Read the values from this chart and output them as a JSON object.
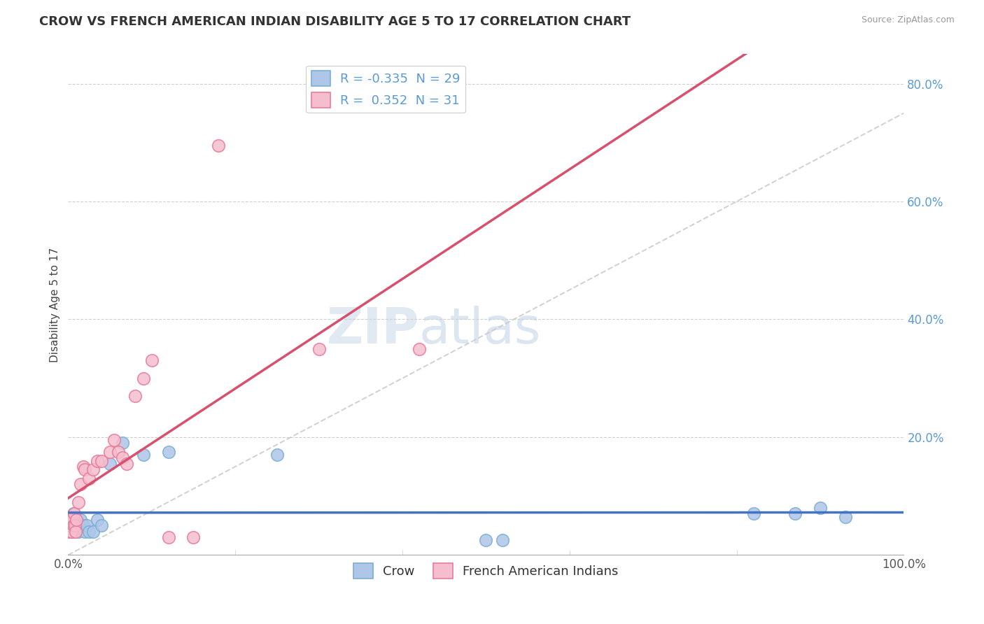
{
  "title": "CROW VS FRENCH AMERICAN INDIAN DISABILITY AGE 5 TO 17 CORRELATION CHART",
  "source": "Source: ZipAtlas.com",
  "ylabel": "Disability Age 5 to 17",
  "xlim": [
    0,
    1.0
  ],
  "ylim": [
    0.0,
    0.85
  ],
  "crow_R": -0.335,
  "crow_N": 29,
  "fai_R": 0.352,
  "fai_N": 31,
  "background_color": "#ffffff",
  "crow_color": "#aec6e8",
  "crow_edge_color": "#7aafd4",
  "fai_color": "#f5bece",
  "fai_edge_color": "#e87a9a",
  "trend_crow_color": "#4472c4",
  "trend_fai_color": "#d94f6e",
  "dash_color": "#c8c8c8",
  "grid_color": "#d0d0d0",
  "ytick_color": "#5b9bd5",
  "crow_x": [
    0.002,
    0.003,
    0.004,
    0.005,
    0.006,
    0.007,
    0.008,
    0.009,
    0.01,
    0.012,
    0.015,
    0.018,
    0.02,
    0.022,
    0.025,
    0.03,
    0.035,
    0.04,
    0.05,
    0.065,
    0.09,
    0.12,
    0.25,
    0.5,
    0.52,
    0.82,
    0.87,
    0.9,
    0.93
  ],
  "crow_y": [
    0.04,
    0.06,
    0.04,
    0.05,
    0.07,
    0.05,
    0.04,
    0.06,
    0.05,
    0.04,
    0.06,
    0.05,
    0.04,
    0.05,
    0.04,
    0.04,
    0.06,
    0.05,
    0.155,
    0.19,
    0.17,
    0.175,
    0.17,
    0.025,
    0.025,
    0.07,
    0.07,
    0.08,
    0.065
  ],
  "fai_x": [
    0.001,
    0.002,
    0.003,
    0.004,
    0.005,
    0.006,
    0.007,
    0.008,
    0.009,
    0.01,
    0.012,
    0.015,
    0.018,
    0.02,
    0.025,
    0.03,
    0.035,
    0.04,
    0.05,
    0.055,
    0.06,
    0.065,
    0.07,
    0.08,
    0.09,
    0.1,
    0.12,
    0.15,
    0.18,
    0.3,
    0.42
  ],
  "fai_y": [
    0.04,
    0.05,
    0.06,
    0.04,
    0.06,
    0.05,
    0.07,
    0.05,
    0.04,
    0.06,
    0.09,
    0.12,
    0.15,
    0.145,
    0.13,
    0.145,
    0.16,
    0.16,
    0.175,
    0.195,
    0.175,
    0.165,
    0.155,
    0.27,
    0.3,
    0.33,
    0.03,
    0.03,
    0.695,
    0.35,
    0.35
  ],
  "legend_fontsize": 13,
  "title_fontsize": 13,
  "axis_label_fontsize": 11,
  "tick_fontsize": 12
}
